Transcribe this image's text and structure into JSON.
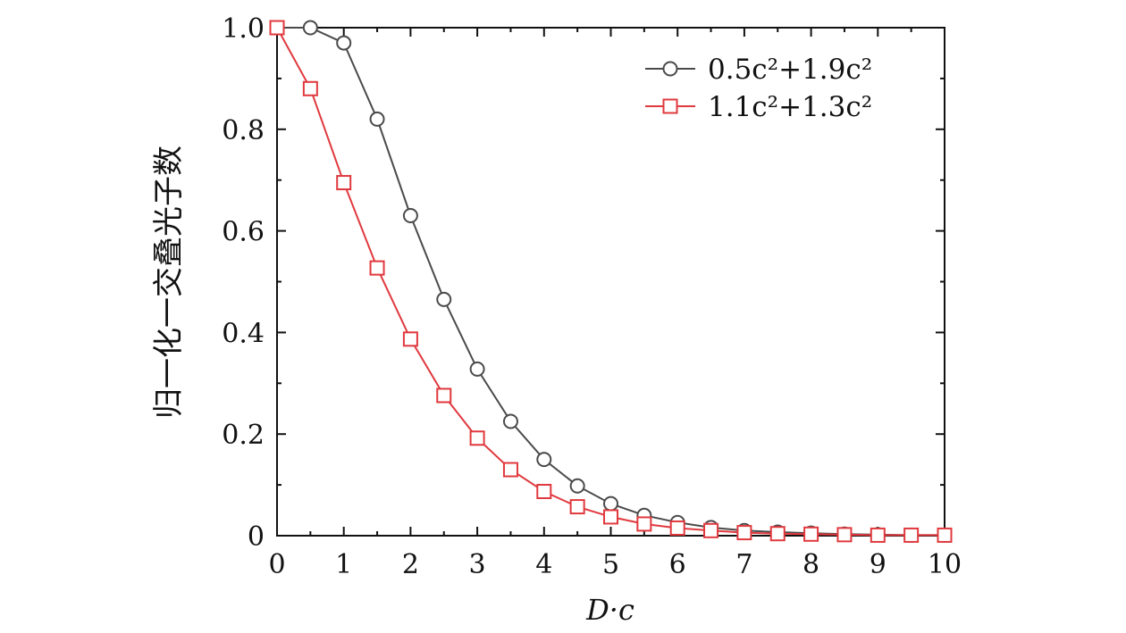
{
  "chart_data": {
    "type": "line",
    "xlabel": "D·c",
    "ylabel": "归一化一交叠光子数",
    "xlim": [
      0,
      10
    ],
    "ylim": [
      0,
      1.0
    ],
    "x_ticks": [
      0,
      1,
      2,
      3,
      4,
      5,
      6,
      7,
      8,
      9,
      10
    ],
    "y_ticks": [
      {
        "value": 0,
        "label": "0"
      },
      {
        "value": 0.2,
        "label": "0.2"
      },
      {
        "value": 0.4,
        "label": "0.4"
      },
      {
        "value": 0.6,
        "label": "0.6"
      },
      {
        "value": 0.8,
        "label": "0.8"
      },
      {
        "value": 1.0,
        "label": "1.0"
      }
    ],
    "grid": false,
    "legend_position": "top-right",
    "series": [
      {
        "name": "0.5c²+1.9c²",
        "marker": "circle",
        "color": "#4a4a4a",
        "x": [
          0,
          0.5,
          1,
          1.5,
          2,
          2.5,
          3,
          3.5,
          4,
          4.5,
          5,
          5.5,
          6,
          6.5,
          7,
          7.5,
          8,
          8.5,
          9,
          9.5,
          10
        ],
        "y": [
          1.0,
          1.0,
          0.97,
          0.82,
          0.63,
          0.465,
          0.328,
          0.225,
          0.15,
          0.098,
          0.063,
          0.04,
          0.026,
          0.016,
          0.01,
          0.007,
          0.005,
          0.003,
          0.002,
          0.001,
          0.001
        ]
      },
      {
        "name": "1.1c²+1.3c²",
        "marker": "square",
        "color": "#e0393e",
        "x": [
          0,
          0.5,
          1,
          1.5,
          2,
          2.5,
          3,
          3.5,
          4,
          4.5,
          5,
          5.5,
          6,
          6.5,
          7,
          7.5,
          8,
          8.5,
          9,
          9.5,
          10
        ],
        "y": [
          1.0,
          0.88,
          0.695,
          0.527,
          0.387,
          0.276,
          0.192,
          0.13,
          0.087,
          0.057,
          0.037,
          0.023,
          0.015,
          0.01,
          0.006,
          0.004,
          0.003,
          0.002,
          0.001,
          0.001,
          0.001
        ]
      }
    ]
  }
}
